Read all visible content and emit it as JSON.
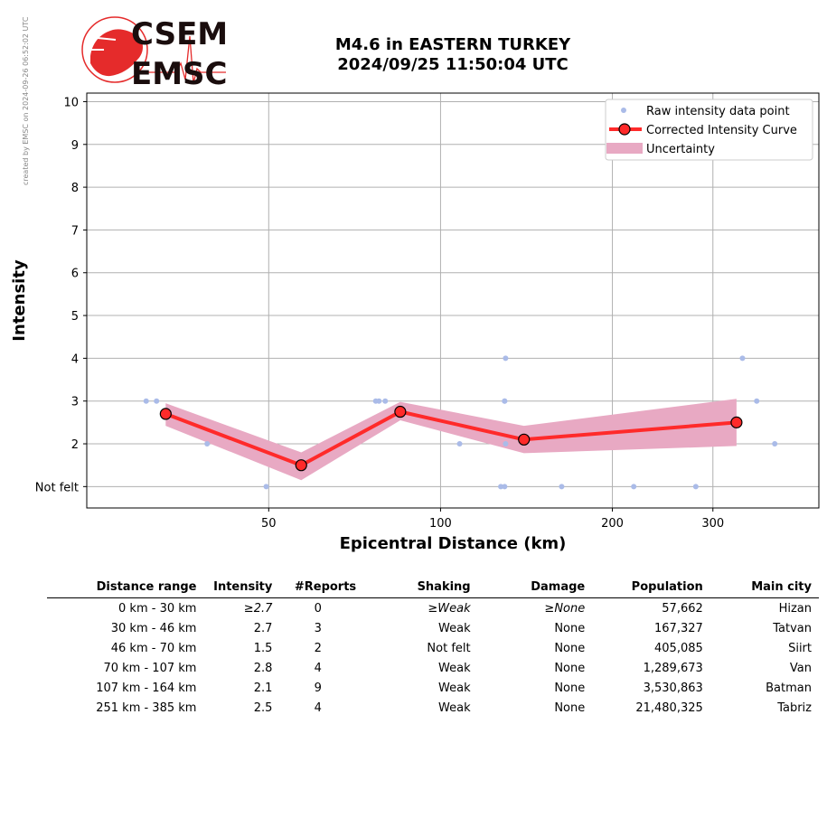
{
  "header": {
    "title_line1": "M4.6 in EASTERN TURKEY",
    "title_line2": "2024/09/25 11:50:04 UTC",
    "logo_text_top": "CSEM",
    "logo_text_bottom": "EMSC",
    "credit": "created by EMSC on 2024-09-26 06:52:02 UTC"
  },
  "chart_data": {
    "type": "scatter",
    "xlabel": "Epicentral Distance (km)",
    "ylabel": "Intensity",
    "x_scale": "log",
    "xlim": [
      24,
      460
    ],
    "ylim": [
      0.5,
      10.2
    ],
    "x_ticks": [
      50,
      100,
      200,
      300
    ],
    "y_ticks": [
      {
        "value": 1,
        "label": "Not felt"
      },
      {
        "value": 2,
        "label": "2"
      },
      {
        "value": 3,
        "label": "3"
      },
      {
        "value": 4,
        "label": "4"
      },
      {
        "value": 5,
        "label": "5"
      },
      {
        "value": 6,
        "label": "6"
      },
      {
        "value": 7,
        "label": "7"
      },
      {
        "value": 8,
        "label": "8"
      },
      {
        "value": 9,
        "label": "9"
      },
      {
        "value": 10,
        "label": "10"
      }
    ],
    "grid": true,
    "legend_position": "top-right",
    "series": [
      {
        "name": "Raw intensity data point",
        "color": "#aabbe8",
        "x": [
          30.5,
          31.8,
          39,
          49.5,
          77,
          78,
          80,
          108,
          127.5,
          129.5,
          129.5,
          129.5,
          130,
          130,
          163,
          218,
          280,
          338,
          358,
          385
        ],
        "y": [
          3,
          3,
          2,
          1,
          3,
          3,
          3,
          2,
          1,
          1,
          3,
          3,
          4,
          2,
          1,
          1,
          1,
          4,
          3,
          2
        ]
      },
      {
        "name": "Corrected Intensity Curve",
        "color": "#ff2a2a",
        "x": [
          33,
          57,
          85,
          140,
          330
        ],
        "y": [
          2.7,
          1.5,
          2.75,
          2.1,
          2.5
        ]
      },
      {
        "name": "Uncertainty",
        "color": "#e8a9c3",
        "x": [
          33,
          57,
          85,
          140,
          330
        ],
        "lower": [
          2.42,
          1.15,
          2.55,
          1.78,
          1.95
        ],
        "upper": [
          2.95,
          1.8,
          2.98,
          2.42,
          3.05
        ]
      }
    ]
  },
  "table": {
    "headers": [
      "Distance range",
      "Intensity",
      "#Reports",
      "Shaking",
      "Damage",
      "Population",
      "Main city"
    ],
    "rows": [
      {
        "range": "0 km -   30 km",
        "intensity": "≥2.7",
        "reports": "0",
        "shaking": "≥Weak",
        "damage": "≥None",
        "population": "57,662",
        "city": "Hizan"
      },
      {
        "range": "30 km -   46 km",
        "intensity": "2.7",
        "reports": "3",
        "shaking": "Weak",
        "damage": "None",
        "population": "167,327",
        "city": "Tatvan"
      },
      {
        "range": "46 km -   70 km",
        "intensity": "1.5",
        "reports": "2",
        "shaking": "Not felt",
        "damage": "None",
        "population": "405,085",
        "city": "Siirt"
      },
      {
        "range": "70 km -  107 km",
        "intensity": "2.8",
        "reports": "4",
        "shaking": "Weak",
        "damage": "None",
        "population": "1,289,673",
        "city": "Van"
      },
      {
        "range": "107 km -  164 km",
        "intensity": "2.1",
        "reports": "9",
        "shaking": "Weak",
        "damage": "None",
        "population": "3,530,863",
        "city": "Batman"
      },
      {
        "range": "251 km -  385 km",
        "intensity": "2.5",
        "reports": "4",
        "shaking": "Weak",
        "damage": "None",
        "population": "21,480,325",
        "city": "Tabriz"
      }
    ]
  }
}
